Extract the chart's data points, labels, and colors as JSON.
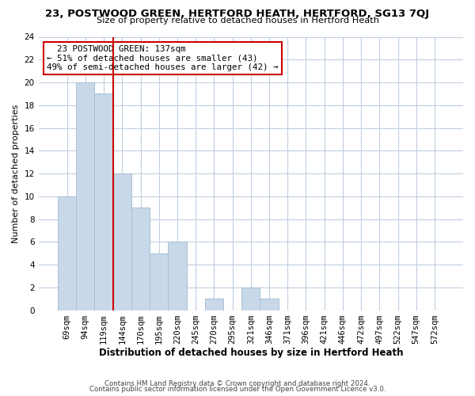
{
  "title_line1": "23, POSTWOOD GREEN, HERTFORD HEATH, HERTFORD, SG13 7QJ",
  "title_line2": "Size of property relative to detached houses in Hertford Heath",
  "xlabel": "Distribution of detached houses by size in Hertford Heath",
  "ylabel": "Number of detached properties",
  "bar_labels": [
    "69sqm",
    "94sqm",
    "119sqm",
    "144sqm",
    "170sqm",
    "195sqm",
    "220sqm",
    "245sqm",
    "270sqm",
    "295sqm",
    "321sqm",
    "346sqm",
    "371sqm",
    "396sqm",
    "421sqm",
    "446sqm",
    "472sqm",
    "497sqm",
    "522sqm",
    "547sqm",
    "572sqm"
  ],
  "bar_values": [
    10,
    20,
    19,
    12,
    9,
    5,
    6,
    0,
    1,
    0,
    2,
    1,
    0,
    0,
    0,
    0,
    0,
    0,
    0,
    0,
    0
  ],
  "bar_color": "#c8d8e8",
  "bar_edge_color": "#a8c0d8",
  "vline_index": 2.5,
  "vline_color": "#cc0000",
  "ylim": [
    0,
    24
  ],
  "yticks": [
    0,
    2,
    4,
    6,
    8,
    10,
    12,
    14,
    16,
    18,
    20,
    22,
    24
  ],
  "annotation_title": "23 POSTWOOD GREEN: 137sqm",
  "annotation_line1": "← 51% of detached houses are smaller (43)",
  "annotation_line2": "49% of semi-detached houses are larger (42) →",
  "annotation_box_color": "#ffffff",
  "annotation_box_edge": "#cc0000",
  "footer_line1": "Contains HM Land Registry data © Crown copyright and database right 2024.",
  "footer_line2": "Contains public sector information licensed under the Open Government Licence v3.0.",
  "background_color": "#ffffff",
  "grid_color": "#c0cfe0"
}
